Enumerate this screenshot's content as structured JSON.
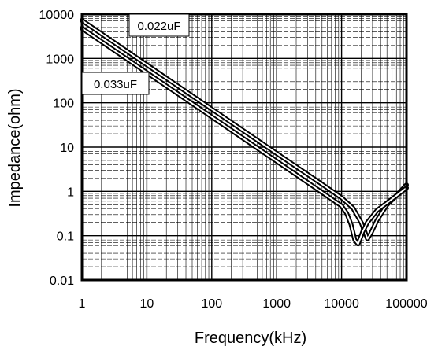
{
  "chart_data": {
    "type": "line",
    "title": "",
    "xlabel": "Frequency(kHz)",
    "ylabel": "Impedance(ohm)",
    "xscale": "log",
    "yscale": "log",
    "xlim": [
      1,
      100000
    ],
    "ylim": [
      0.01,
      10000
    ],
    "grid": true,
    "x_ticks": [
      "1",
      "10",
      "100",
      "1000",
      "10000",
      "100000"
    ],
    "y_ticks": [
      "0.01",
      "0.1",
      "1",
      "10",
      "100",
      "1000",
      "10000"
    ],
    "series": [
      {
        "name": "0.022uF",
        "x": [
          1,
          10,
          100,
          1000,
          5000,
          10000,
          15000,
          20000,
          23000,
          25000,
          28000,
          35000,
          50000,
          70000,
          100000
        ],
        "y": [
          7200,
          720,
          72,
          7.2,
          1.45,
          0.72,
          0.42,
          0.2,
          0.12,
          0.085,
          0.11,
          0.22,
          0.5,
          0.8,
          1.4
        ]
      },
      {
        "name": "0.033uF",
        "x": [
          1,
          10,
          100,
          1000,
          5000,
          10000,
          12000,
          14000,
          16000,
          18000,
          21000,
          25000,
          35000,
          50000,
          70000,
          100000
        ],
        "y": [
          4800,
          480,
          48,
          4.8,
          0.95,
          0.47,
          0.32,
          0.18,
          0.08,
          0.065,
          0.12,
          0.2,
          0.37,
          0.55,
          0.8,
          1.2
        ]
      }
    ],
    "annotations": [
      "0.022uF",
      "0.033uF"
    ]
  }
}
